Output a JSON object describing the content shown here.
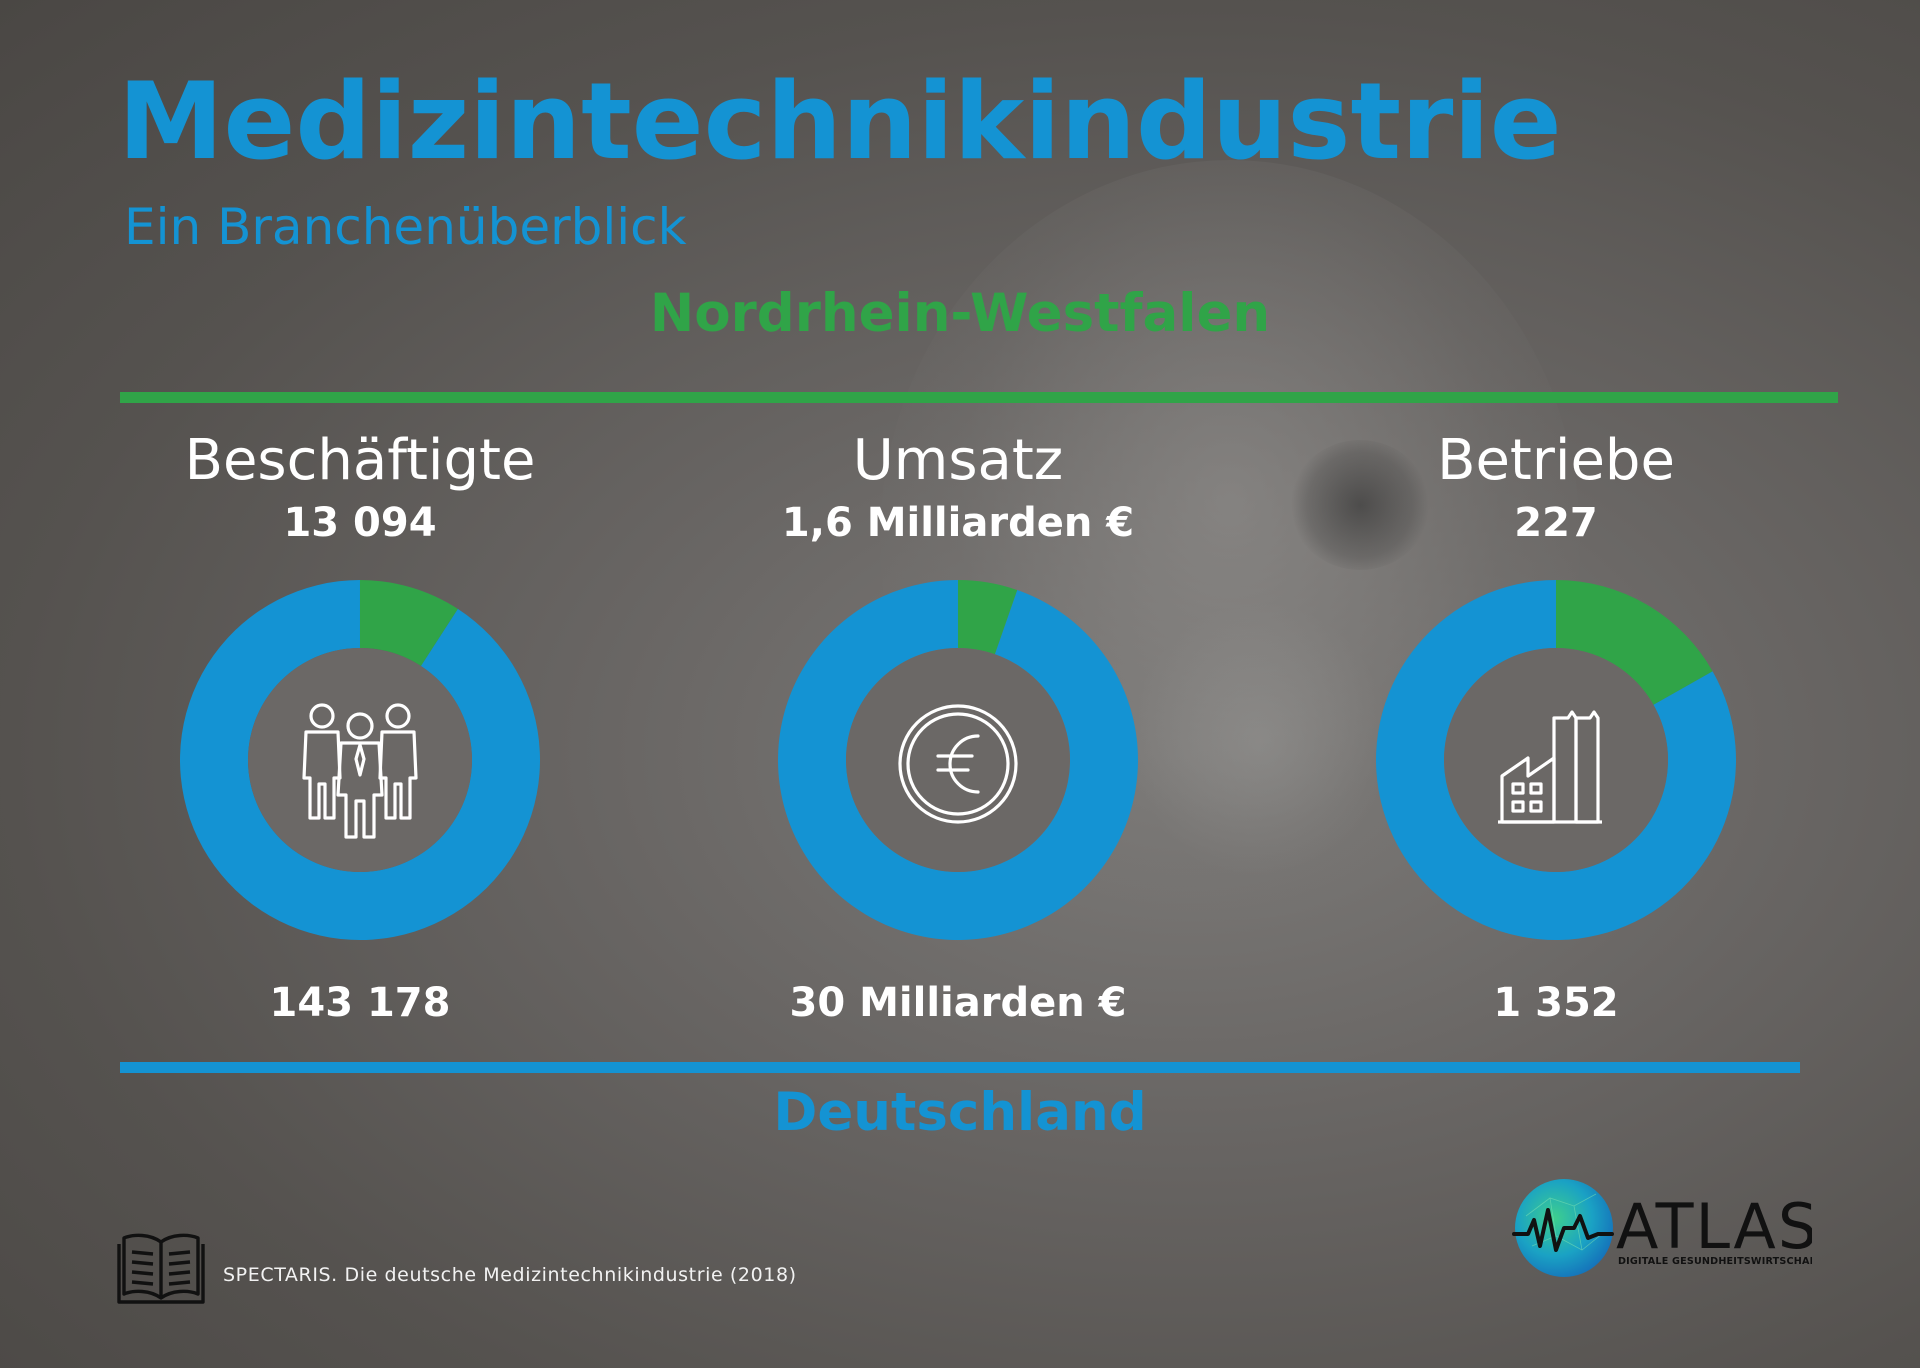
{
  "header": {
    "title": "Medizintechnikindustrie",
    "subtitle": "Ein Branchenüberblick"
  },
  "regions": {
    "top": "Nordrhein-Westfalen",
    "bottom": "Deutschland"
  },
  "colors": {
    "region": "#30a448",
    "total": "#1493d3"
  },
  "chart_data": [
    {
      "type": "pie",
      "title": "Beschäftigte",
      "icon": "employees-icon",
      "labels": [
        "Nordrhein-Westfalen",
        "Deutschland"
      ],
      "region_label": "13 094",
      "total_label": "143 178",
      "values": [
        13094,
        143178
      ]
    },
    {
      "type": "pie",
      "title": "Umsatz",
      "icon": "euro-coin-icon",
      "labels": [
        "Nordrhein-Westfalen",
        "Deutschland"
      ],
      "region_label": "1,6 Milliarden €",
      "total_label": "30 Milliarden €",
      "values": [
        1.6,
        30
      ]
    },
    {
      "type": "pie",
      "title": "Betriebe",
      "icon": "factory-icon",
      "labels": [
        "Nordrhein-Westfalen",
        "Deutschland"
      ],
      "region_label": "227",
      "total_label": "1 352",
      "values": [
        227,
        1352
      ]
    }
  ],
  "source": {
    "icon": "book-icon",
    "text": "SPECTARIS. Die deutsche Medizintechnikindustrie (2018)"
  },
  "logo": {
    "icon": "atlas-globe-icon",
    "name": "ATLAS",
    "tagline": "DIGITALE GESUNDHEITSWIRTSCHAFT"
  }
}
